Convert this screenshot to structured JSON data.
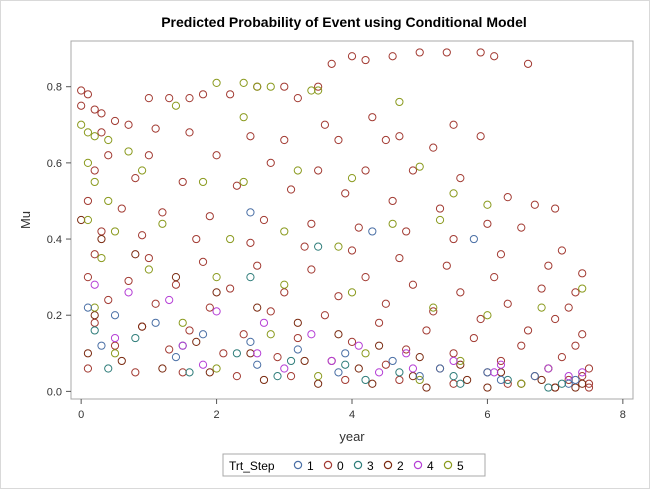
{
  "chart_data": {
    "type": "scatter",
    "title": "Predicted Probability of Event using Conditional Model",
    "xlabel": "year",
    "ylabel": "Mu",
    "xlim": [
      -0.15,
      8.15
    ],
    "ylim": [
      -0.02,
      0.92
    ],
    "xticks": [
      "0",
      "2",
      "4",
      "6",
      "8"
    ],
    "yticks": [
      "0.0",
      "0.2",
      "0.4",
      "0.6",
      "0.8"
    ],
    "grid": false,
    "legend": {
      "title": "Trt_Step",
      "placement": "bottom-center",
      "entries": [
        {
          "label": "1",
          "color": "#4a6fa5"
        },
        {
          "label": "0",
          "color": "#a23a32"
        },
        {
          "label": "3",
          "color": "#2f7d7a"
        },
        {
          "label": "2",
          "color": "#7a2a10"
        },
        {
          "label": "4",
          "color": "#b53fd6"
        },
        {
          "label": "5",
          "color": "#8a9a1e"
        }
      ]
    },
    "series": [
      {
        "name": "0",
        "color": "#a23a32",
        "points": [
          [
            0.0,
            0.79
          ],
          [
            0.1,
            0.78
          ],
          [
            0.0,
            0.75
          ],
          [
            0.2,
            0.74
          ],
          [
            0.3,
            0.73
          ],
          [
            0.5,
            0.71
          ],
          [
            0.7,
            0.7
          ],
          [
            1.0,
            0.77
          ],
          [
            1.3,
            0.77
          ],
          [
            1.6,
            0.77
          ],
          [
            1.8,
            0.78
          ],
          [
            2.2,
            0.78
          ],
          [
            2.6,
            0.8
          ],
          [
            3.0,
            0.8
          ],
          [
            3.5,
            0.8
          ],
          [
            3.7,
            0.86
          ],
          [
            4.0,
            0.88
          ],
          [
            4.2,
            0.87
          ],
          [
            4.6,
            0.88
          ],
          [
            5.0,
            0.89
          ],
          [
            5.4,
            0.89
          ],
          [
            5.9,
            0.89
          ],
          [
            6.1,
            0.88
          ],
          [
            6.6,
            0.86
          ],
          [
            3.2,
            0.77
          ],
          [
            3.6,
            0.7
          ],
          [
            4.3,
            0.72
          ],
          [
            4.7,
            0.67
          ],
          [
            5.5,
            0.7
          ],
          [
            5.9,
            0.67
          ],
          [
            0.3,
            0.68
          ],
          [
            1.1,
            0.69
          ],
          [
            1.6,
            0.68
          ],
          [
            2.5,
            0.67
          ],
          [
            3.0,
            0.66
          ],
          [
            3.8,
            0.66
          ],
          [
            4.5,
            0.66
          ],
          [
            5.2,
            0.64
          ],
          [
            0.4,
            0.62
          ],
          [
            1.0,
            0.62
          ],
          [
            2.0,
            0.62
          ],
          [
            2.8,
            0.6
          ],
          [
            3.5,
            0.58
          ],
          [
            4.2,
            0.58
          ],
          [
            4.9,
            0.58
          ],
          [
            5.6,
            0.56
          ],
          [
            6.3,
            0.51
          ],
          [
            6.7,
            0.49
          ],
          [
            7.0,
            0.48
          ],
          [
            0.2,
            0.58
          ],
          [
            0.8,
            0.56
          ],
          [
            1.5,
            0.55
          ],
          [
            2.3,
            0.54
          ],
          [
            3.1,
            0.53
          ],
          [
            3.9,
            0.52
          ],
          [
            4.6,
            0.5
          ],
          [
            5.3,
            0.48
          ],
          [
            6.0,
            0.44
          ],
          [
            6.5,
            0.43
          ],
          [
            7.1,
            0.37
          ],
          [
            7.4,
            0.31
          ],
          [
            0.1,
            0.5
          ],
          [
            0.6,
            0.48
          ],
          [
            1.2,
            0.47
          ],
          [
            1.9,
            0.46
          ],
          [
            2.7,
            0.45
          ],
          [
            3.4,
            0.44
          ],
          [
            4.1,
            0.43
          ],
          [
            4.8,
            0.42
          ],
          [
            5.5,
            0.4
          ],
          [
            6.2,
            0.36
          ],
          [
            6.9,
            0.33
          ],
          [
            7.3,
            0.26
          ],
          [
            0.3,
            0.42
          ],
          [
            0.9,
            0.41
          ],
          [
            1.7,
            0.4
          ],
          [
            2.5,
            0.39
          ],
          [
            3.3,
            0.38
          ],
          [
            4.0,
            0.37
          ],
          [
            4.7,
            0.35
          ],
          [
            5.4,
            0.33
          ],
          [
            6.1,
            0.3
          ],
          [
            6.8,
            0.27
          ],
          [
            7.2,
            0.22
          ],
          [
            0.2,
            0.36
          ],
          [
            1.0,
            0.35
          ],
          [
            1.8,
            0.34
          ],
          [
            2.6,
            0.33
          ],
          [
            3.4,
            0.32
          ],
          [
            4.2,
            0.3
          ],
          [
            4.9,
            0.28
          ],
          [
            5.6,
            0.26
          ],
          [
            6.3,
            0.23
          ],
          [
            7.0,
            0.19
          ],
          [
            7.4,
            0.15
          ],
          [
            0.1,
            0.3
          ],
          [
            0.7,
            0.29
          ],
          [
            1.4,
            0.28
          ],
          [
            2.2,
            0.27
          ],
          [
            3.0,
            0.26
          ],
          [
            3.8,
            0.25
          ],
          [
            4.5,
            0.23
          ],
          [
            5.2,
            0.21
          ],
          [
            5.9,
            0.19
          ],
          [
            6.6,
            0.16
          ],
          [
            7.3,
            0.12
          ],
          [
            0.4,
            0.24
          ],
          [
            1.1,
            0.23
          ],
          [
            1.9,
            0.22
          ],
          [
            2.8,
            0.21
          ],
          [
            3.6,
            0.2
          ],
          [
            4.4,
            0.18
          ],
          [
            5.1,
            0.16
          ],
          [
            5.8,
            0.14
          ],
          [
            6.5,
            0.12
          ],
          [
            7.1,
            0.09
          ],
          [
            7.5,
            0.06
          ],
          [
            0.2,
            0.18
          ],
          [
            0.9,
            0.17
          ],
          [
            1.6,
            0.16
          ],
          [
            2.4,
            0.15
          ],
          [
            3.2,
            0.14
          ],
          [
            4.0,
            0.13
          ],
          [
            4.8,
            0.11
          ],
          [
            5.5,
            0.1
          ],
          [
            6.2,
            0.08
          ],
          [
            6.9,
            0.06
          ],
          [
            7.4,
            0.04
          ],
          [
            0.5,
            0.12
          ],
          [
            1.3,
            0.11
          ],
          [
            2.1,
            0.1
          ],
          [
            2.9,
            0.09
          ],
          [
            3.7,
            0.08
          ],
          [
            4.5,
            0.07
          ],
          [
            5.3,
            0.06
          ],
          [
            6.0,
            0.05
          ],
          [
            6.7,
            0.04
          ],
          [
            7.2,
            0.03
          ],
          [
            7.5,
            0.02
          ],
          [
            0.1,
            0.06
          ],
          [
            0.8,
            0.05
          ],
          [
            1.5,
            0.05
          ],
          [
            2.3,
            0.04
          ],
          [
            3.1,
            0.04
          ],
          [
            3.9,
            0.03
          ],
          [
            4.7,
            0.03
          ],
          [
            5.5,
            0.02
          ],
          [
            6.3,
            0.02
          ],
          [
            7.0,
            0.01
          ],
          [
            7.5,
            0.01
          ]
        ]
      },
      {
        "name": "2",
        "color": "#7a2a10",
        "points": [
          [
            0.0,
            0.45
          ],
          [
            0.3,
            0.4
          ],
          [
            0.8,
            0.36
          ],
          [
            1.4,
            0.3
          ],
          [
            2.0,
            0.26
          ],
          [
            2.6,
            0.22
          ],
          [
            3.2,
            0.18
          ],
          [
            3.8,
            0.15
          ],
          [
            4.4,
            0.12
          ],
          [
            5.0,
            0.09
          ],
          [
            5.6,
            0.07
          ],
          [
            6.2,
            0.05
          ],
          [
            6.8,
            0.03
          ],
          [
            7.4,
            0.02
          ],
          [
            0.2,
            0.2
          ],
          [
            0.9,
            0.17
          ],
          [
            1.7,
            0.13
          ],
          [
            2.5,
            0.1
          ],
          [
            3.3,
            0.08
          ],
          [
            4.1,
            0.06
          ],
          [
            4.9,
            0.04
          ],
          [
            5.7,
            0.03
          ],
          [
            6.5,
            0.02
          ],
          [
            7.3,
            0.01
          ],
          [
            0.1,
            0.1
          ],
          [
            0.6,
            0.08
          ],
          [
            1.2,
            0.06
          ],
          [
            1.9,
            0.05
          ],
          [
            2.7,
            0.03
          ],
          [
            3.5,
            0.02
          ],
          [
            4.3,
            0.02
          ],
          [
            5.1,
            0.01
          ],
          [
            6.0,
            0.01
          ],
          [
            7.0,
            0.01
          ]
        ]
      },
      {
        "name": "5",
        "color": "#8a9a1e",
        "points": [
          [
            0.0,
            0.7
          ],
          [
            0.1,
            0.68
          ],
          [
            0.2,
            0.67
          ],
          [
            0.4,
            0.66
          ],
          [
            0.7,
            0.63
          ],
          [
            2.0,
            0.81
          ],
          [
            2.4,
            0.81
          ],
          [
            2.6,
            0.8
          ],
          [
            2.8,
            0.8
          ],
          [
            3.4,
            0.79
          ],
          [
            3.5,
            0.79
          ],
          [
            4.7,
            0.76
          ],
          [
            2.4,
            0.72
          ],
          [
            1.4,
            0.75
          ],
          [
            0.9,
            0.58
          ],
          [
            1.8,
            0.55
          ],
          [
            2.4,
            0.55
          ],
          [
            3.2,
            0.58
          ],
          [
            4.0,
            0.56
          ],
          [
            5.0,
            0.59
          ],
          [
            5.5,
            0.52
          ],
          [
            6.0,
            0.49
          ],
          [
            0.1,
            0.6
          ],
          [
            0.2,
            0.55
          ],
          [
            0.4,
            0.5
          ],
          [
            0.1,
            0.45
          ],
          [
            0.5,
            0.42
          ],
          [
            1.2,
            0.44
          ],
          [
            2.2,
            0.4
          ],
          [
            3.0,
            0.42
          ],
          [
            3.8,
            0.38
          ],
          [
            4.6,
            0.44
          ],
          [
            5.3,
            0.45
          ],
          [
            0.3,
            0.35
          ],
          [
            1.0,
            0.32
          ],
          [
            2.0,
            0.3
          ],
          [
            3.0,
            0.28
          ],
          [
            4.0,
            0.26
          ],
          [
            5.2,
            0.22
          ],
          [
            6.0,
            0.2
          ],
          [
            6.8,
            0.22
          ],
          [
            0.2,
            0.22
          ],
          [
            1.5,
            0.18
          ],
          [
            2.8,
            0.15
          ],
          [
            4.2,
            0.1
          ],
          [
            5.6,
            0.08
          ],
          [
            6.9,
            0.06
          ],
          [
            7.4,
            0.27
          ],
          [
            0.5,
            0.1
          ],
          [
            2.0,
            0.06
          ],
          [
            3.5,
            0.04
          ],
          [
            5.0,
            0.03
          ],
          [
            6.5,
            0.02
          ]
        ]
      },
      {
        "name": "1",
        "color": "#4a6fa5",
        "points": [
          [
            0.1,
            0.22
          ],
          [
            0.5,
            0.2
          ],
          [
            1.1,
            0.18
          ],
          [
            1.8,
            0.15
          ],
          [
            2.5,
            0.13
          ],
          [
            3.2,
            0.11
          ],
          [
            3.9,
            0.1
          ],
          [
            4.6,
            0.08
          ],
          [
            5.3,
            0.06
          ],
          [
            6.0,
            0.05
          ],
          [
            6.7,
            0.04
          ],
          [
            7.3,
            0.03
          ],
          [
            0.3,
            0.12
          ],
          [
            1.4,
            0.09
          ],
          [
            2.6,
            0.07
          ],
          [
            3.8,
            0.05
          ],
          [
            5.0,
            0.04
          ],
          [
            6.2,
            0.03
          ],
          [
            7.2,
            0.02
          ],
          [
            2.5,
            0.47
          ],
          [
            4.3,
            0.42
          ],
          [
            5.8,
            0.4
          ]
        ]
      },
      {
        "name": "3",
        "color": "#2f7d7a",
        "points": [
          [
            0.2,
            0.16
          ],
          [
            0.8,
            0.14
          ],
          [
            1.5,
            0.12
          ],
          [
            2.3,
            0.1
          ],
          [
            3.1,
            0.08
          ],
          [
            3.9,
            0.07
          ],
          [
            4.7,
            0.05
          ],
          [
            5.5,
            0.04
          ],
          [
            6.3,
            0.03
          ],
          [
            7.1,
            0.02
          ],
          [
            0.4,
            0.06
          ],
          [
            1.6,
            0.05
          ],
          [
            2.9,
            0.04
          ],
          [
            4.2,
            0.03
          ],
          [
            5.6,
            0.02
          ],
          [
            6.9,
            0.01
          ],
          [
            2.5,
            0.3
          ],
          [
            3.5,
            0.38
          ]
        ]
      },
      {
        "name": "4",
        "color": "#b53fd6",
        "points": [
          [
            0.2,
            0.28
          ],
          [
            0.7,
            0.26
          ],
          [
            1.3,
            0.24
          ],
          [
            2.0,
            0.21
          ],
          [
            2.7,
            0.18
          ],
          [
            3.4,
            0.15
          ],
          [
            4.1,
            0.12
          ],
          [
            4.8,
            0.1
          ],
          [
            5.5,
            0.08
          ],
          [
            6.2,
            0.07
          ],
          [
            6.9,
            0.06
          ],
          [
            7.4,
            0.05
          ],
          [
            0.5,
            0.14
          ],
          [
            1.5,
            0.12
          ],
          [
            2.6,
            0.1
          ],
          [
            3.7,
            0.08
          ],
          [
            4.9,
            0.06
          ],
          [
            6.1,
            0.05
          ],
          [
            7.2,
            0.04
          ],
          [
            1.8,
            0.07
          ],
          [
            3.0,
            0.06
          ],
          [
            4.4,
            0.05
          ]
        ]
      }
    ]
  }
}
